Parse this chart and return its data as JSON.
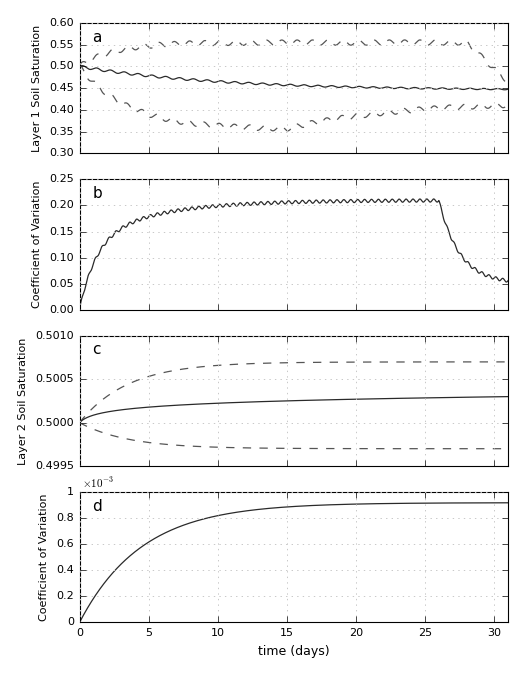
{
  "fig_width": 5.26,
  "fig_height": 6.76,
  "dpi": 100,
  "background_color": "#ffffff",
  "subplot_labels": [
    "a",
    "b",
    "c",
    "d"
  ],
  "x_max": 31,
  "panel_a": {
    "ylabel": "Layer 1 Soil Saturation",
    "ylim": [
      0.3,
      0.6
    ],
    "yticks": [
      0.3,
      0.35,
      0.4,
      0.45,
      0.5,
      0.55,
      0.6
    ]
  },
  "panel_b": {
    "ylabel": "Coefficient of Variation",
    "ylim": [
      0.0,
      0.25
    ],
    "yticks": [
      0.0,
      0.05,
      0.1,
      0.15,
      0.2,
      0.25
    ]
  },
  "panel_c": {
    "ylabel": "Layer 2 Soil Saturation",
    "ylim": [
      0.4995,
      0.501
    ],
    "yticks": [
      0.4995,
      0.5,
      0.5005,
      0.501
    ]
  },
  "panel_d": {
    "ylabel": "Coefficient of Variation",
    "ylim": [
      0.0,
      0.001
    ],
    "yticks": [
      0.0,
      0.0002,
      0.0004,
      0.0006,
      0.0008,
      0.001
    ]
  },
  "xlabel": "time (days)",
  "grid_color": "#c8c8c8",
  "line_color": "#2a2a2a",
  "dashed_color": "#555555"
}
